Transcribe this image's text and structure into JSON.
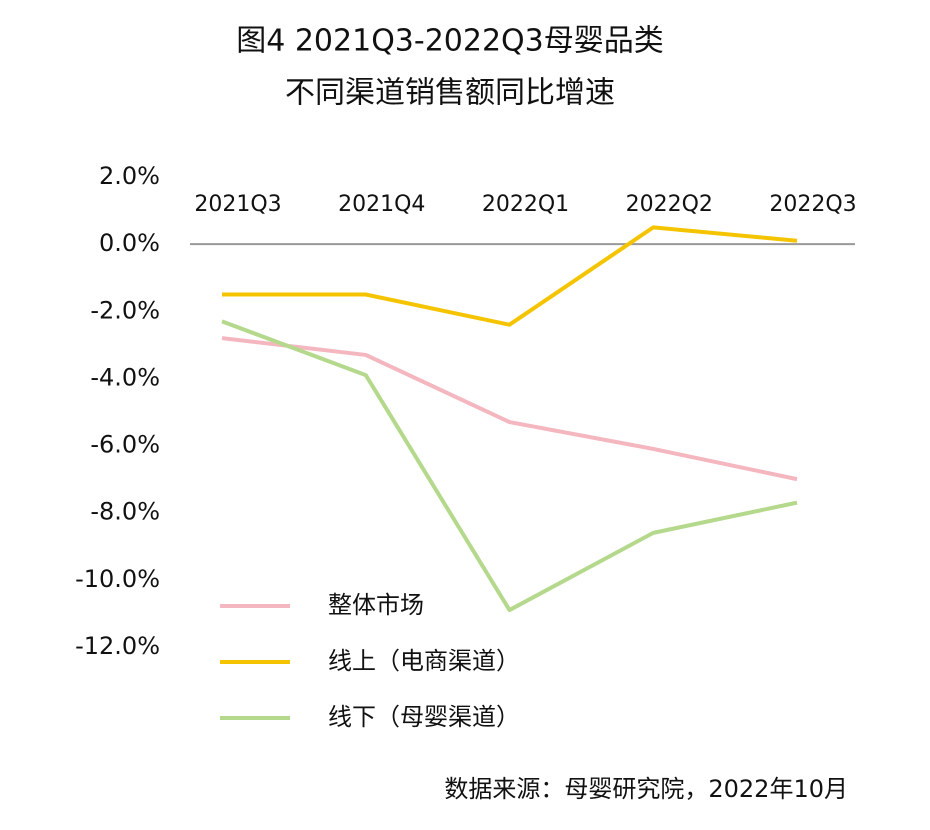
{
  "chart_data": {
    "type": "line",
    "title": [
      "图4 2021Q3-2022Q3母婴品类",
      "不同渠道销售额同比增速"
    ],
    "categories": [
      "2021Q3",
      "2021Q4",
      "2022Q1",
      "2022Q2",
      "2022Q3"
    ],
    "series": [
      {
        "name": "整体市场",
        "color": "#f4b6bf",
        "values": [
          -2.8,
          -3.3,
          -5.3,
          -6.1,
          -7.0
        ]
      },
      {
        "name": "线上（电商渠道）",
        "color": "#f5c400",
        "values": [
          -1.5,
          -1.5,
          -2.4,
          0.5,
          0.1
        ]
      },
      {
        "name": "线下（母婴渠道）",
        "color": "#b5d98c",
        "values": [
          -2.3,
          -3.9,
          -10.9,
          -8.6,
          -7.7
        ]
      }
    ],
    "ylim": [
      -12,
      2
    ],
    "yticks": [
      {
        "value": 2,
        "label": "2.0%"
      },
      {
        "value": 0,
        "label": "0.0%"
      },
      {
        "value": -2,
        "label": "-2.0%"
      },
      {
        "value": -4,
        "label": "-4.0%"
      },
      {
        "value": -6,
        "label": "-6.0%"
      },
      {
        "value": -8,
        "label": "-8.0%"
      },
      {
        "value": -10,
        "label": "-10.0%"
      },
      {
        "value": -12,
        "label": "-12.0%"
      }
    ],
    "source": "数据来源：母婴研究院，2022年10月"
  }
}
